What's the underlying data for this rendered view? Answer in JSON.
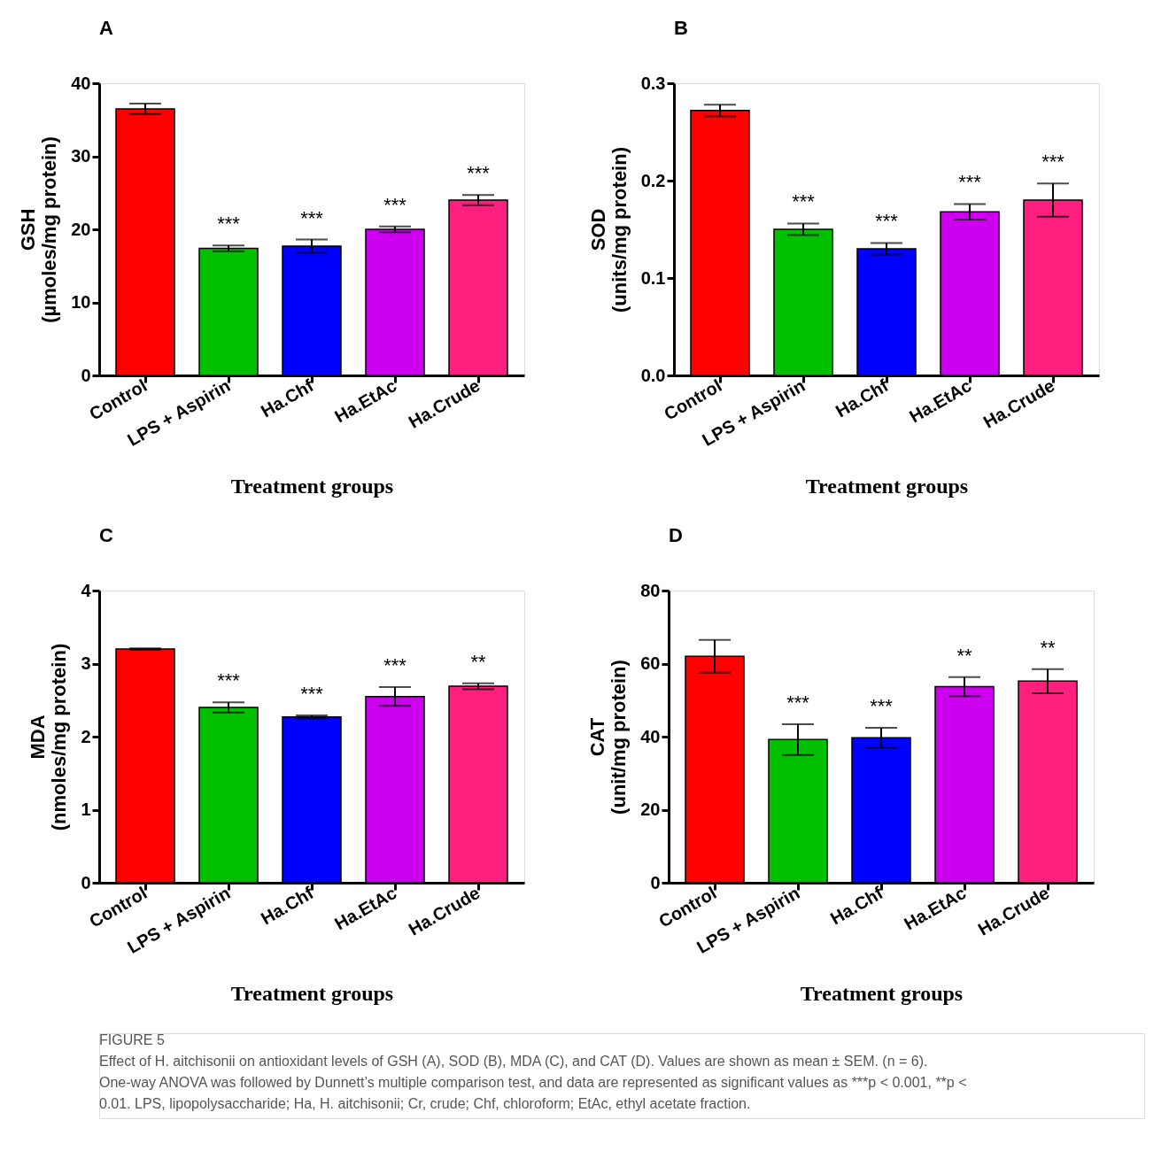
{
  "chart_data": [
    {
      "type": "bar",
      "title": "A",
      "xlabel": "Treatment groups",
      "ylabel": "GSH\n(µmoles/mg protein)",
      "categories": [
        "Control",
        "LPS + Aspirin",
        "Ha.Chf",
        "Ha.EtAc",
        "Ha.Crude"
      ],
      "values": [
        36.5,
        17.4,
        17.7,
        20.0,
        24.0
      ],
      "errors": [
        0.7,
        0.4,
        0.9,
        0.4,
        0.7
      ],
      "colors": [
        "#ff0000",
        "#00c000",
        "#0000ff",
        "#cc00ee",
        "#ff1f7f"
      ],
      "ylim": [
        0,
        40
      ],
      "yticks": [
        0,
        10,
        20,
        30,
        40
      ],
      "grid": false,
      "annotations": [
        {
          "text": "***",
          "x": "LPS + Aspirin",
          "y": 17.8
        },
        {
          "text": "***",
          "x": "Ha.Chf",
          "y": 18.6
        },
        {
          "text": "***",
          "x": "Ha.EtAc",
          "y": 20.4
        },
        {
          "text": "***",
          "x": "Ha.Crude",
          "y": 24.7
        }
      ]
    },
    {
      "type": "bar",
      "title": "B",
      "xlabel": "Treatment groups",
      "ylabel": "SOD\n(units/mg protein)",
      "categories": [
        "Control",
        "LPS + Aspirin",
        "Ha.Chf",
        "Ha.EtAc",
        "Ha.Crude"
      ],
      "values": [
        0.272,
        0.15,
        0.13,
        0.168,
        0.18
      ],
      "errors": [
        0.006,
        0.006,
        0.006,
        0.008,
        0.017
      ],
      "colors": [
        "#ff0000",
        "#00c000",
        "#0000ff",
        "#cc00ee",
        "#ff1f7f"
      ],
      "ylim": [
        0,
        0.3
      ],
      "yticks": [
        {
          "value": 0,
          "label": "0.0"
        },
        0.1,
        0.2,
        0.3
      ],
      "grid": false,
      "annotations": [
        {
          "text": "***",
          "x": "LPS + Aspirin",
          "y": 0.156
        },
        {
          "text": "***",
          "x": "Ha.Chf",
          "y": 0.136
        },
        {
          "text": "***",
          "x": "Ha.EtAc",
          "y": 0.176
        },
        {
          "text": "***",
          "x": "Ha.Crude",
          "y": 0.197
        }
      ]
    },
    {
      "type": "bar",
      "title": "C",
      "xlabel": "Treatment groups",
      "ylabel": "MDA\n(nmoles/mg protein)",
      "categories": [
        "Control",
        "LPS + Aspirin",
        "Ha.Chf",
        "Ha.EtAc",
        "Ha.Crude"
      ],
      "values": [
        3.2,
        2.4,
        2.27,
        2.55,
        2.69
      ],
      "errors": [
        0.01,
        0.07,
        0.02,
        0.13,
        0.04
      ],
      "colors": [
        "#ff0000",
        "#00c000",
        "#0000ff",
        "#cc00ee",
        "#ff1f7f"
      ],
      "ylim": [
        0,
        4
      ],
      "yticks": [
        0,
        1,
        2,
        3,
        4
      ],
      "grid": false,
      "annotations": [
        {
          "text": "***",
          "x": "LPS + Aspirin",
          "y": 2.47
        },
        {
          "text": "***",
          "x": "Ha.Chf",
          "y": 2.29
        },
        {
          "text": "***",
          "x": "Ha.EtAc",
          "y": 2.68
        },
        {
          "text": "**",
          "x": "Ha.Crude",
          "y": 2.73
        }
      ]
    },
    {
      "type": "bar",
      "title": "D",
      "xlabel": "Treatment groups",
      "ylabel": "CAT\n(unit/mg protein)",
      "categories": [
        "Control",
        "LPS + Aspirin",
        "Ha.Chf",
        "Ha.EtAc",
        "Ha.Crude"
      ],
      "values": [
        62,
        39.2,
        39.7,
        53.7,
        55.2
      ],
      "errors": [
        4.5,
        4.2,
        2.7,
        2.6,
        3.3
      ],
      "colors": [
        "#ff0000",
        "#00c000",
        "#0000ff",
        "#cc00ee",
        "#ff1f7f"
      ],
      "ylim": [
        0,
        80
      ],
      "yticks": [
        0,
        20,
        40,
        60,
        80
      ],
      "grid": false,
      "annotations": [
        {
          "text": "***",
          "x": "LPS + Aspirin",
          "y": 43.4
        },
        {
          "text": "***",
          "x": "Ha.Chf",
          "y": 42.4
        },
        {
          "text": "**",
          "x": "Ha.EtAc",
          "y": 56.3
        },
        {
          "text": "**",
          "x": "Ha.Crude",
          "y": 58.5
        },
        "FIGURE 5",
        "Effect of H. aitchisonii on antioxidant levels of GSH (A), SOD (B), MDA (C), and CAT (D). Values are shown as mean ± SEM. (n = 6). One-way ANOVA was followed by Dunnett’s multiple comparison test, and data are represented as significant values as ***p < 0.001, **p < 0.01. LPS, lipopolysaccharide; Ha, H. aitchisonii; Cr, crude; Chf, chloroform; EtAc, ethyl acetate fraction."
      ]
    }
  ]
}
